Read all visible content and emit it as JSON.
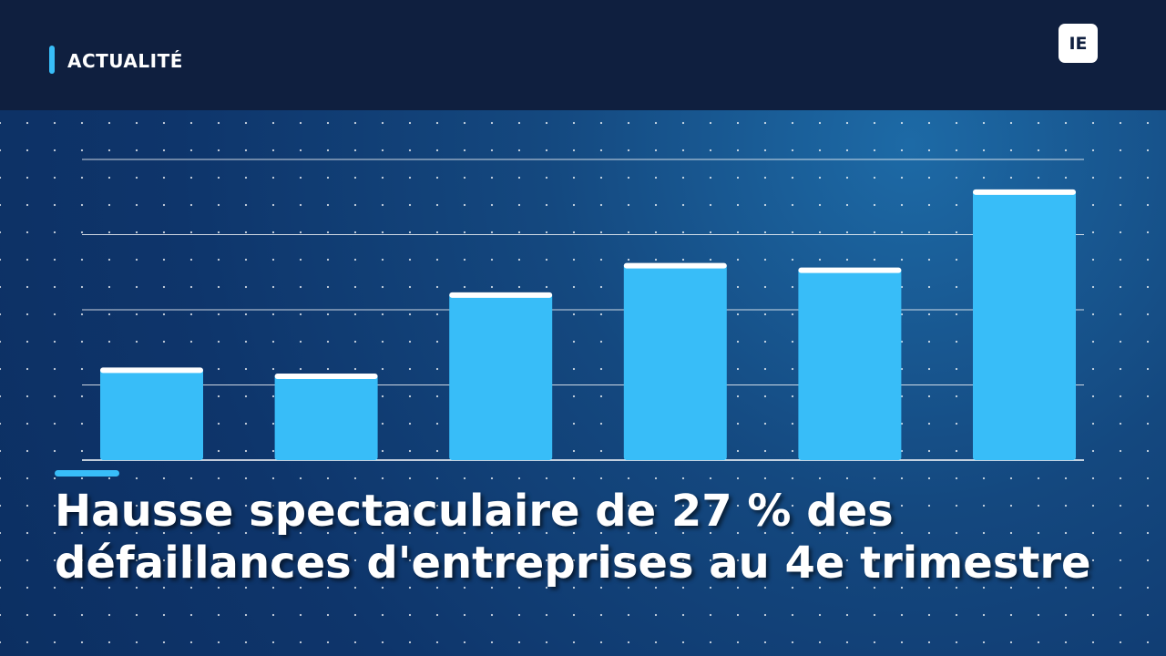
{
  "header": {
    "label": "ACTUALITÉ",
    "logo": "IE"
  },
  "headline": "Hausse spectaculaire de 27 % des défaillances d'entreprises au 4e trimestre",
  "chart_data": {
    "type": "bar",
    "values": [
      1.22,
      1.14,
      2.22,
      2.61,
      2.55,
      3.59
    ],
    "color": "#38bdf8",
    "ylim": [
      0,
      4
    ],
    "yticks": [
      0,
      1,
      2,
      3,
      4
    ],
    "grid": true
  }
}
